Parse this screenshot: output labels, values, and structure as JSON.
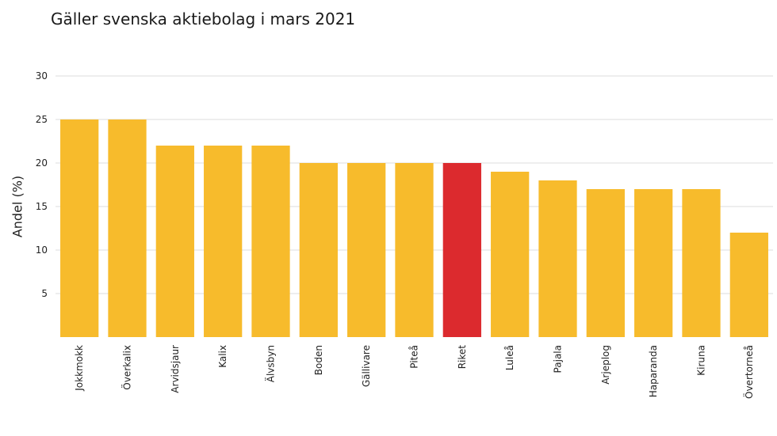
{
  "chart_data": {
    "type": "bar",
    "title": "Gäller svenska aktiebolag i mars 2021",
    "ylabel": "Andel (%)",
    "xlabel": "",
    "ylim": [
      0,
      30
    ],
    "yticks": [
      5,
      10,
      15,
      20,
      25,
      30
    ],
    "grid": true,
    "categories": [
      "Jokkmokk",
      "Överkalix",
      "Arvidsjaur",
      "Kalix",
      "Älvsbyn",
      "Boden",
      "Gällivare",
      "Piteå",
      "Riket",
      "Luleå",
      "Pajala",
      "Arjeplog",
      "Haparanda",
      "Kiruna",
      "Övertorneå"
    ],
    "values": [
      25,
      25,
      22,
      22,
      22,
      20,
      20,
      20,
      20,
      19,
      18,
      17,
      17,
      17,
      12
    ],
    "colors": {
      "default": "#f7bb2c",
      "highlight": "#dc2a2e",
      "highlight_category": "Riket"
    }
  }
}
